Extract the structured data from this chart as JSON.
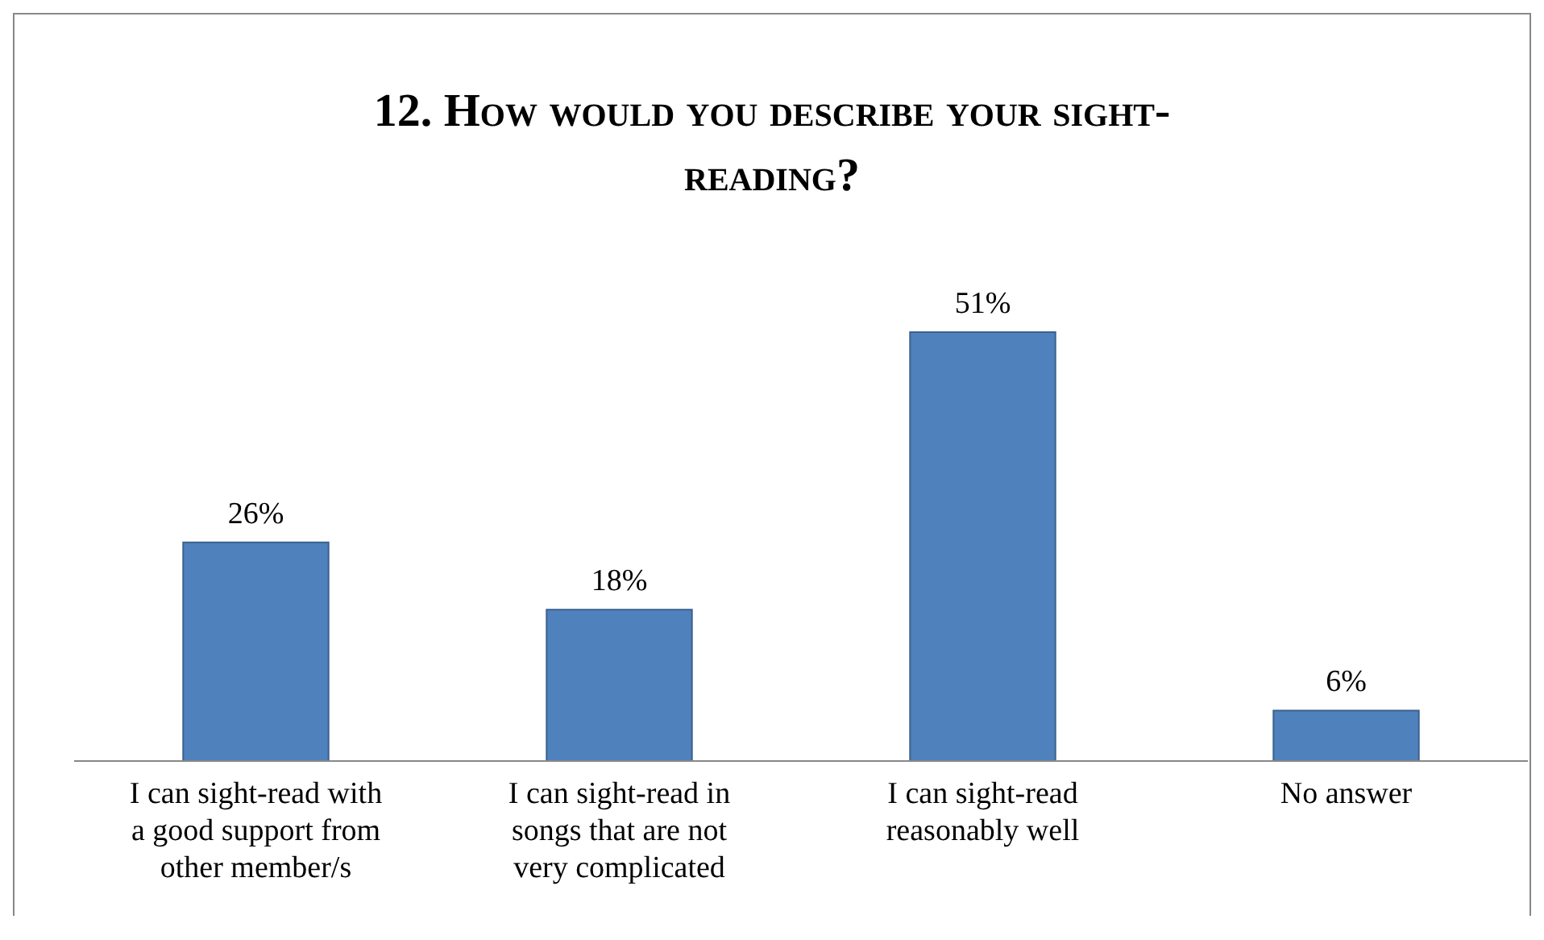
{
  "chart_data": {
    "type": "bar",
    "title": "12. How would you describe your sight-reading?",
    "categories": [
      "I can sight-read with a good support from other member/s",
      "I can sight-read in songs that are not very complicated",
      "I can sight-read reasonably well",
      "No answer"
    ],
    "values": [
      26,
      18,
      51,
      6
    ],
    "value_labels": [
      "26%",
      "18%",
      "51%",
      "6%"
    ],
    "color": "#4f81bd"
  }
}
